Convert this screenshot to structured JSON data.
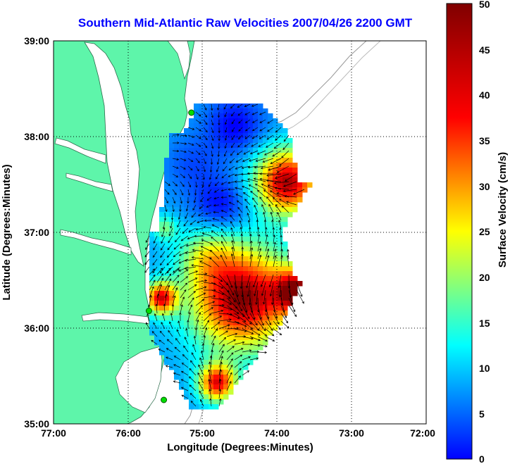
{
  "title": "Southern Mid-Atlantic Raw Velocities 2007/04/26 2200 GMT",
  "x_axis": {
    "label": "Longitude (Degrees:Minutes)",
    "ticks": [
      "77:00",
      "76:00",
      "75:00",
      "74:00",
      "73:00",
      "72:00"
    ]
  },
  "y_axis": {
    "label": "Latitude (Degrees:Minutes)",
    "ticks": [
      "39:00",
      "38:00",
      "37:00",
      "36:00",
      "35:00"
    ]
  },
  "colorbar": {
    "label": "Surface Velocity (cm/s)",
    "ticks": [
      "50",
      "45",
      "40",
      "35",
      "30",
      "25",
      "20",
      "15",
      "10",
      "5",
      "0"
    ],
    "min": 0,
    "max": 50,
    "colormap": "jet"
  },
  "map": {
    "lon_range": [
      -77,
      -72
    ],
    "lat_range": [
      35,
      39
    ],
    "land_color": "#5ef5aa",
    "water_color": "#ffffff",
    "grid": "dotted",
    "stations": [
      {
        "lon": -75.15,
        "lat": 38.25
      },
      {
        "lon": -75.72,
        "lat": 36.18
      },
      {
        "lon": -75.52,
        "lat": 35.25
      }
    ],
    "station_color": "#00dd00"
  }
}
